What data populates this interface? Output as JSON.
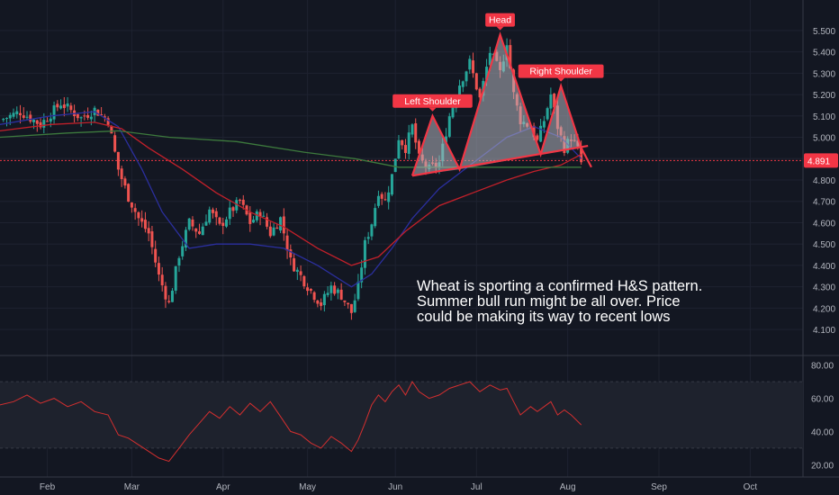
{
  "annotation": "Wheat is sporting a confirmed H&S pattern. Summer bull run might be all over. Price could be making its way to recent lows",
  "colors": {
    "background": "#131722",
    "grid": "#1e2230",
    "up_candle": "#26a69a",
    "down_candle": "#ef5350",
    "ma_fast": "#2b2f9e",
    "ma_mid": "#c2202a",
    "ma_slow": "#3d7a3d",
    "pattern_line": "#f23645",
    "pattern_fill": "#b2b5be",
    "rsi_line": "#d32f2f",
    "rsi_band": "#1e222d",
    "label_bg": "#f23645",
    "axis_text": "#b2b5be"
  },
  "chart_data": [
    {
      "type": "candlestick",
      "title": "",
      "ylim": [
        4.05,
        5.55
      ],
      "yticks": [
        "5.500",
        "5.400",
        "5.300",
        "5.200",
        "5.100",
        "5.000",
        "4.900",
        "4.800",
        "4.700",
        "4.600",
        "4.500",
        "4.400",
        "4.300",
        "4.200",
        "4.100"
      ],
      "xticks": [
        "Feb",
        "Mar",
        "Apr",
        "May",
        "Jun",
        "Jul",
        "Aug",
        "Sep",
        "Oct"
      ],
      "last_price": "4.891",
      "price_path": [
        [
          0,
          5.08
        ],
        [
          6,
          5.12
        ],
        [
          12,
          5.06
        ],
        [
          18,
          5.16
        ],
        [
          24,
          5.09
        ],
        [
          28,
          5.13
        ],
        [
          32,
          5.08
        ],
        [
          35,
          4.85
        ],
        [
          38,
          4.72
        ],
        [
          41,
          4.62
        ],
        [
          44,
          4.55
        ],
        [
          47,
          4.35
        ],
        [
          50,
          4.22
        ],
        [
          53,
          4.45
        ],
        [
          56,
          4.6
        ],
        [
          59,
          4.55
        ],
        [
          62,
          4.66
        ],
        [
          65,
          4.58
        ],
        [
          68,
          4.65
        ],
        [
          71,
          4.7
        ],
        [
          74,
          4.6
        ],
        [
          77,
          4.65
        ],
        [
          80,
          4.55
        ],
        [
          83,
          4.62
        ],
        [
          86,
          4.42
        ],
        [
          89,
          4.35
        ],
        [
          92,
          4.28
        ],
        [
          95,
          4.22
        ],
        [
          98,
          4.3
        ],
        [
          101,
          4.26
        ],
        [
          104,
          4.18
        ],
        [
          106,
          4.3
        ],
        [
          108,
          4.5
        ],
        [
          110,
          4.6
        ],
        [
          112,
          4.75
        ],
        [
          114,
          4.7
        ],
        [
          116,
          4.82
        ],
        [
          118,
          5.0
        ],
        [
          120,
          4.95
        ],
        [
          122,
          5.05
        ],
        [
          124,
          4.9
        ],
        [
          127,
          4.85
        ],
        [
          130,
          4.88
        ],
        [
          133,
          5.1
        ],
        [
          136,
          5.25
        ],
        [
          139,
          5.35
        ],
        [
          142,
          5.18
        ],
        [
          145,
          5.4
        ],
        [
          148,
          5.3
        ],
        [
          150,
          5.45
        ],
        [
          152,
          5.2
        ],
        [
          154,
          5.08
        ],
        [
          157,
          5.05
        ],
        [
          159,
          4.98
        ],
        [
          161,
          5.08
        ],
        [
          163,
          5.2
        ],
        [
          165,
          5.05
        ],
        [
          167,
          4.95
        ],
        [
          169,
          5.0
        ],
        [
          171,
          4.94
        ],
        [
          172,
          4.88
        ]
      ],
      "moving_averages": [
        {
          "label": "fast",
          "points": [
            [
              0,
              5.06
            ],
            [
              15,
              5.1
            ],
            [
              28,
              5.12
            ],
            [
              35,
              5.05
            ],
            [
              42,
              4.85
            ],
            [
              48,
              4.65
            ],
            [
              56,
              4.48
            ],
            [
              64,
              4.5
            ],
            [
              74,
              4.5
            ],
            [
              84,
              4.48
            ],
            [
              94,
              4.4
            ],
            [
              104,
              4.3
            ],
            [
              110,
              4.36
            ],
            [
              116,
              4.48
            ],
            [
              122,
              4.62
            ],
            [
              130,
              4.76
            ],
            [
              140,
              4.88
            ],
            [
              150,
              5.0
            ],
            [
              158,
              5.05
            ],
            [
              166,
              5.0
            ],
            [
              172,
              4.9
            ]
          ]
        },
        {
          "label": "mid",
          "points": [
            [
              0,
              5.03
            ],
            [
              15,
              5.06
            ],
            [
              28,
              5.07
            ],
            [
              36,
              5.04
            ],
            [
              44,
              4.95
            ],
            [
              54,
              4.85
            ],
            [
              64,
              4.74
            ],
            [
              74,
              4.65
            ],
            [
              84,
              4.58
            ],
            [
              94,
              4.48
            ],
            [
              104,
              4.4
            ],
            [
              112,
              4.44
            ],
            [
              120,
              4.56
            ],
            [
              130,
              4.68
            ],
            [
              140,
              4.74
            ],
            [
              150,
              4.8
            ],
            [
              158,
              4.84
            ],
            [
              166,
              4.87
            ],
            [
              172,
              4.92
            ]
          ]
        },
        {
          "label": "slow",
          "points": [
            [
              0,
              5.0
            ],
            [
              20,
              5.02
            ],
            [
              35,
              5.03
            ],
            [
              50,
              5.0
            ],
            [
              70,
              4.98
            ],
            [
              90,
              4.93
            ],
            [
              105,
              4.9
            ],
            [
              118,
              4.86
            ],
            [
              130,
              4.86
            ],
            [
              145,
              4.86
            ],
            [
              160,
              4.86
            ],
            [
              172,
              4.86
            ]
          ]
        }
      ],
      "pattern": {
        "labels": [
          "Left Shoulder",
          "Head",
          "Right Shoulder"
        ],
        "points": [
          [
            122,
            4.82
          ],
          [
            128,
            5.1
          ],
          [
            136,
            4.85
          ],
          [
            148,
            5.48
          ],
          [
            160,
            4.92
          ],
          [
            166,
            5.24
          ],
          [
            172,
            4.95
          ]
        ],
        "neckline": [
          [
            122,
            4.82
          ],
          [
            174,
            4.96
          ]
        ],
        "break": [
          [
            172,
            4.95
          ],
          [
            175,
            4.86
          ]
        ]
      }
    },
    {
      "type": "line",
      "title": "",
      "ylim": [
        18,
        82
      ],
      "yticks": [
        "80.00",
        "60.00",
        "40.00",
        "20.00"
      ],
      "band": [
        30,
        70
      ],
      "values": [
        [
          0,
          56
        ],
        [
          4,
          58
        ],
        [
          8,
          62
        ],
        [
          12,
          57
        ],
        [
          16,
          60
        ],
        [
          20,
          55
        ],
        [
          24,
          58
        ],
        [
          28,
          52
        ],
        [
          32,
          50
        ],
        [
          35,
          38
        ],
        [
          38,
          36
        ],
        [
          41,
          32
        ],
        [
          44,
          28
        ],
        [
          47,
          24
        ],
        [
          50,
          22
        ],
        [
          53,
          30
        ],
        [
          56,
          38
        ],
        [
          59,
          45
        ],
        [
          62,
          52
        ],
        [
          65,
          48
        ],
        [
          68,
          55
        ],
        [
          71,
          50
        ],
        [
          74,
          57
        ],
        [
          77,
          52
        ],
        [
          80,
          58
        ],
        [
          83,
          49
        ],
        [
          86,
          40
        ],
        [
          89,
          38
        ],
        [
          92,
          33
        ],
        [
          95,
          30
        ],
        [
          98,
          37
        ],
        [
          101,
          33
        ],
        [
          104,
          28
        ],
        [
          106,
          35
        ],
        [
          108,
          45
        ],
        [
          110,
          56
        ],
        [
          112,
          62
        ],
        [
          114,
          58
        ],
        [
          116,
          64
        ],
        [
          118,
          68
        ],
        [
          120,
          62
        ],
        [
          122,
          70
        ],
        [
          124,
          64
        ],
        [
          127,
          60
        ],
        [
          130,
          62
        ],
        [
          133,
          66
        ],
        [
          136,
          68
        ],
        [
          139,
          70
        ],
        [
          142,
          64
        ],
        [
          145,
          68
        ],
        [
          148,
          65
        ],
        [
          150,
          66
        ],
        [
          152,
          58
        ],
        [
          154,
          50
        ],
        [
          157,
          55
        ],
        [
          159,
          52
        ],
        [
          161,
          55
        ],
        [
          163,
          58
        ],
        [
          165,
          50
        ],
        [
          167,
          53
        ],
        [
          169,
          50
        ],
        [
          172,
          44
        ]
      ]
    }
  ]
}
